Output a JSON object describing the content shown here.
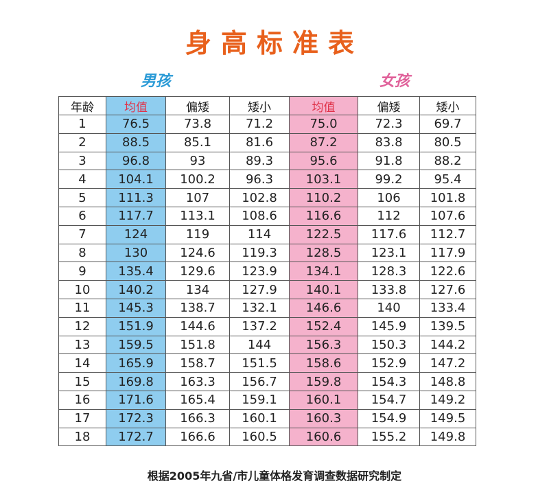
{
  "title": "身高标准表",
  "groups": {
    "boy": "男孩",
    "girl": "女孩"
  },
  "colors": {
    "title": "#e8601c",
    "boy": "#2a9ad6",
    "girl": "#e0619a",
    "boy_mean_bg": "#8fcdef",
    "girl_mean_bg": "#f5b2cc"
  },
  "table": {
    "headers": [
      "年龄",
      "均值",
      "偏矮",
      "矮小",
      "均值",
      "偏矮",
      "矮小"
    ],
    "rows": [
      [
        "1",
        "76.5",
        "73.8",
        "71.2",
        "75.0",
        "72.3",
        "69.7"
      ],
      [
        "2",
        "88.5",
        "85.1",
        "81.6",
        "87.2",
        "83.8",
        "80.5"
      ],
      [
        "3",
        "96.8",
        "93",
        "89.3",
        "95.6",
        "91.8",
        "88.2"
      ],
      [
        "4",
        "104.1",
        "100.2",
        "96.3",
        "103.1",
        "99.2",
        "95.4"
      ],
      [
        "5",
        "111.3",
        "107",
        "102.8",
        "110.2",
        "106",
        "101.8"
      ],
      [
        "6",
        "117.7",
        "113.1",
        "108.6",
        "116.6",
        "112",
        "107.6"
      ],
      [
        "7",
        "124",
        "119",
        "114",
        "122.5",
        "117.6",
        "112.7"
      ],
      [
        "8",
        "130",
        "124.6",
        "119.3",
        "128.5",
        "123.1",
        "117.9"
      ],
      [
        "9",
        "135.4",
        "129.6",
        "123.9",
        "134.1",
        "128.3",
        "122.6"
      ],
      [
        "10",
        "140.2",
        "134",
        "127.9",
        "140.1",
        "133.8",
        "127.6"
      ],
      [
        "11",
        "145.3",
        "138.7",
        "132.1",
        "146.6",
        "140",
        "133.4"
      ],
      [
        "12",
        "151.9",
        "144.6",
        "137.2",
        "152.4",
        "145.9",
        "139.5"
      ],
      [
        "13",
        "159.5",
        "151.8",
        "144",
        "156.3",
        "150.3",
        "144.2"
      ],
      [
        "14",
        "165.9",
        "158.7",
        "151.5",
        "158.6",
        "152.9",
        "147.2"
      ],
      [
        "15",
        "169.8",
        "163.3",
        "156.7",
        "159.8",
        "154.3",
        "148.8"
      ],
      [
        "16",
        "171.6",
        "165.4",
        "159.1",
        "160.1",
        "154.7",
        "149.2"
      ],
      [
        "17",
        "172.3",
        "166.3",
        "160.1",
        "160.3",
        "154.9",
        "149.5"
      ],
      [
        "18",
        "172.7",
        "166.6",
        "160.5",
        "160.6",
        "155.2",
        "149.8"
      ]
    ]
  },
  "footer": "根据2005年九省/市儿童体格发育调查数据研究制定"
}
